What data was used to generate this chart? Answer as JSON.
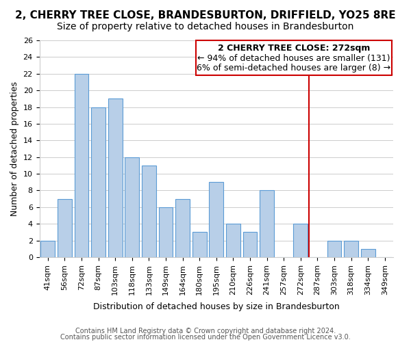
{
  "title": "2, CHERRY TREE CLOSE, BRANDESBURTON, DRIFFIELD, YO25 8RE",
  "subtitle": "Size of property relative to detached houses in Brandesburton",
  "xlabel": "Distribution of detached houses by size in Brandesburton",
  "ylabel": "Number of detached properties",
  "bin_labels": [
    "41sqm",
    "56sqm",
    "72sqm",
    "87sqm",
    "103sqm",
    "118sqm",
    "133sqm",
    "149sqm",
    "164sqm",
    "180sqm",
    "195sqm",
    "210sqm",
    "226sqm",
    "241sqm",
    "257sqm",
    "272sqm",
    "287sqm",
    "303sqm",
    "318sqm",
    "334sqm",
    "349sqm"
  ],
  "bar_values": [
    2,
    7,
    22,
    18,
    19,
    12,
    11,
    6,
    7,
    3,
    9,
    4,
    3,
    8,
    0,
    4,
    0,
    2,
    2,
    1,
    0
  ],
  "bar_color": "#b8cfe8",
  "bar_edge_color": "#5b9bd5",
  "ylim": [
    0,
    26
  ],
  "yticks": [
    0,
    2,
    4,
    6,
    8,
    10,
    12,
    14,
    16,
    18,
    20,
    22,
    24,
    26
  ],
  "vline_x": 15.5,
  "vline_color": "#cc0000",
  "annotation_title": "2 CHERRY TREE CLOSE: 272sqm",
  "annotation_line1": "← 94% of detached houses are smaller (131)",
  "annotation_line2": "6% of semi-detached houses are larger (8) →",
  "annotation_box_color": "#ffffff",
  "annotation_box_edge": "#cc0000",
  "footer1": "Contains HM Land Registry data © Crown copyright and database right 2024.",
  "footer2": "Contains public sector information licensed under the Open Government Licence v3.0.",
  "title_fontsize": 11,
  "subtitle_fontsize": 10,
  "axis_label_fontsize": 9,
  "tick_fontsize": 8,
  "annotation_fontsize": 9,
  "footer_fontsize": 7
}
